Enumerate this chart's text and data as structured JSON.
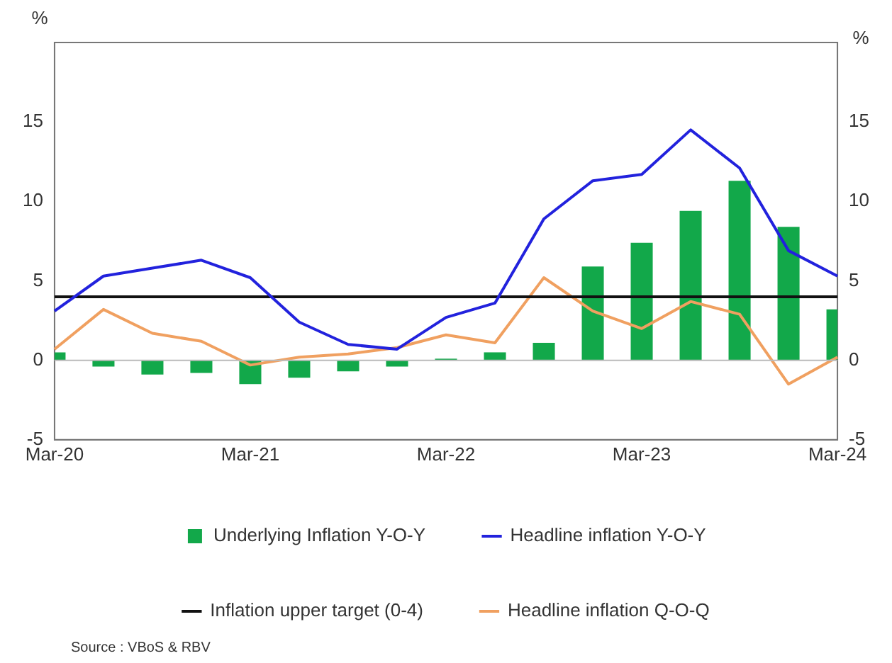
{
  "chart_data": {
    "type": "bar",
    "ylabel": "%",
    "y2label": "%",
    "categories": [
      "Mar-20",
      null,
      null,
      null,
      "Mar-21",
      null,
      null,
      null,
      "Mar-22",
      null,
      null,
      null,
      "Mar-23",
      null,
      null,
      null,
      "Mar-24"
    ],
    "series": [
      {
        "name": "Underlying Inflation Y-O-Y",
        "color": "#12a84a",
        "values": [
          0.5,
          -0.4,
          -0.9,
          -0.8,
          -1.5,
          -1.1,
          -0.7,
          -0.4,
          0.1,
          0.5,
          1.1,
          5.9,
          7.4,
          9.4,
          11.3,
          8.4,
          3.2
        ]
      },
      {
        "name": "Headline inflation Y-O-Y",
        "type": "line",
        "color": "#2222dd",
        "values": [
          3.1,
          5.3,
          5.8,
          6.3,
          5.2,
          2.4,
          1.0,
          0.7,
          2.7,
          3.6,
          8.9,
          11.3,
          11.7,
          14.5,
          12.1,
          6.9,
          5.3
        ]
      },
      {
        "name": "Inflation upper target (0-4)",
        "type": "line",
        "color": "#111111",
        "values": [
          4,
          4,
          4,
          4,
          4,
          4,
          4,
          4,
          4,
          4,
          4,
          4,
          4,
          4,
          4,
          4,
          4
        ]
      },
      {
        "name": "Headline inflation Q-O-Q",
        "type": "line",
        "color": "#f0a060",
        "values": [
          0.7,
          3.2,
          1.7,
          1.2,
          -0.3,
          0.2,
          0.4,
          0.8,
          1.6,
          1.1,
          5.2,
          3.1,
          2.0,
          3.7,
          2.9,
          -1.5,
          0.2
        ]
      }
    ],
    "ylim": [
      -5,
      20
    ],
    "yticks": [
      -5,
      0,
      5,
      10,
      15
    ],
    "y2lim": [
      -5,
      20
    ],
    "y2ticks": [
      -5,
      0,
      5,
      10,
      15
    ],
    "ref_lines": [
      {
        "axis": "y",
        "value": 0,
        "color": "#bbbbbb"
      }
    ],
    "grid": false,
    "legend": "bottom",
    "marker": "none",
    "line_style": "solid",
    "annotations": [
      "Source : VBoS & RBV"
    ]
  }
}
